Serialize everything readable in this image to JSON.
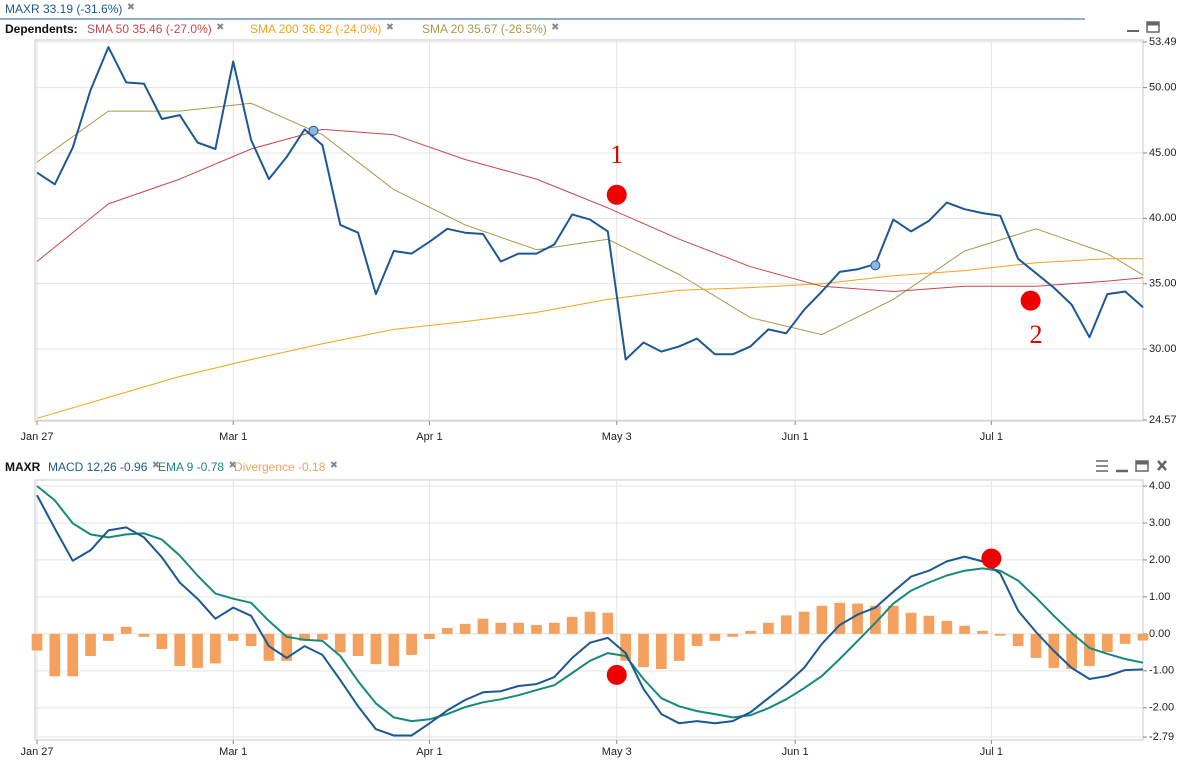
{
  "chart_data": [
    {
      "type": "line",
      "dependents_label": "Dependents:",
      "x": [
        0,
        2,
        4,
        6,
        8,
        10,
        12,
        14,
        16,
        18,
        20,
        22,
        24,
        26,
        28,
        30,
        32,
        34,
        36,
        38,
        40,
        42,
        44,
        46,
        48,
        50,
        52,
        54,
        56,
        58,
        60,
        62,
        64,
        66,
        68,
        70,
        72,
        74,
        76,
        78,
        80,
        82,
        84,
        86,
        88,
        90,
        92,
        94,
        96,
        98,
        100,
        102,
        104,
        106,
        108,
        110,
        112,
        114,
        116,
        118,
        120,
        122,
        124
      ],
      "xlim": [
        0,
        124
      ],
      "xticks": [
        {
          "value": 0,
          "label": "Jan 27"
        },
        {
          "value": 22,
          "label": "Mar 1"
        },
        {
          "value": 44,
          "label": "Apr 1"
        },
        {
          "value": 65,
          "label": "May 3"
        },
        {
          "value": 85,
          "label": "Jun 1"
        },
        {
          "value": 107,
          "label": "Jul 1"
        }
      ],
      "ylim": [
        24.57,
        53.49
      ],
      "yticks": [
        24.57,
        {
          "value": 30,
          "label": "30.00"
        },
        {
          "value": 35,
          "label": "35.00"
        },
        {
          "value": 40,
          "label": "40.00"
        },
        {
          "value": 45,
          "label": "45.00"
        },
        {
          "value": 50,
          "label": "50.00"
        },
        53.49
      ],
      "grid": true,
      "series": [
        {
          "name": "MAXR 33.19 (-31.6%)",
          "type": "line",
          "color": "#1b5894",
          "width": 2,
          "values": [
            43.5,
            42.6,
            45.4,
            49.8,
            53.1,
            50.4,
            50.3,
            47.6,
            47.9,
            45.8,
            45.3,
            52,
            46,
            43,
            44.7,
            46.8,
            45.6,
            39.5,
            38.9,
            34.2,
            37.5,
            37.3,
            38.2,
            39.2,
            38.9,
            38.8,
            36.7,
            37.3,
            37.3,
            38,
            40.3,
            39.9,
            39,
            29.2,
            30.5,
            29.8,
            30.2,
            30.8,
            29.6,
            29.6,
            30.2,
            31.5,
            31.2,
            33,
            34.4,
            35.9,
            36.1,
            36.5,
            39.9,
            39,
            39.8,
            41.2,
            40.7,
            40.4,
            40.2,
            36.9,
            35.8,
            34.7,
            33.4,
            30.9,
            34.2,
            34.4,
            33.19
          ]
        },
        {
          "name": "SMA 50 35.46 (-27.0%)",
          "type": "line",
          "color": "#c8474a",
          "width": 1,
          "x": [
            0,
            8,
            16,
            24,
            32,
            40,
            48,
            56,
            64,
            72,
            80,
            88,
            96,
            104,
            112,
            120,
            124
          ],
          "values": [
            36.7,
            41.1,
            43,
            45.3,
            46.8,
            46.4,
            44.5,
            43,
            40.8,
            38.4,
            36.3,
            34.8,
            34.4,
            34.8,
            34.8,
            35.2,
            35.46
          ]
        },
        {
          "name": "SMA 200 36.92 (-24.0%)",
          "type": "line",
          "color": "#f2a31b",
          "width": 1,
          "x": [
            0,
            8,
            16,
            24,
            32,
            40,
            48,
            56,
            64,
            72,
            80,
            88,
            96,
            104,
            112,
            120,
            124
          ],
          "values": [
            24.7,
            26.3,
            27.9,
            29.2,
            30.4,
            31.5,
            32.1,
            32.8,
            33.8,
            34.5,
            34.7,
            35,
            35.6,
            36,
            36.6,
            36.9,
            36.92
          ]
        },
        {
          "name": "SMA 20 35.67 (-26.5%)",
          "type": "line",
          "color": "#a8994a",
          "width": 1,
          "x": [
            0,
            8,
            16,
            24,
            32,
            40,
            48,
            56,
            64,
            72,
            80,
            88,
            96,
            104,
            112,
            120,
            124
          ],
          "values": [
            44.3,
            48.2,
            48.2,
            48.8,
            46.4,
            42.2,
            39.5,
            37.6,
            38.4,
            35.7,
            32.4,
            31.1,
            33.8,
            37.5,
            39.2,
            37.3,
            35.67
          ]
        }
      ],
      "events": [
        {
          "x": 31,
          "y": 46.7
        },
        {
          "x": 94,
          "y": 36.4
        }
      ],
      "markers": [
        {
          "x": 65,
          "y": 41.8,
          "color": "#ee0000"
        },
        {
          "x": 111.4,
          "y": 33.7,
          "color": "#ee0000"
        }
      ],
      "annotations": [
        {
          "text": "1",
          "x": 65,
          "y": 44.7
        },
        {
          "text": "2",
          "x": 112,
          "y": 30.9
        }
      ]
    },
    {
      "type": "line",
      "symbol": "MAXR",
      "x": [
        0,
        2,
        4,
        6,
        8,
        10,
        12,
        14,
        16,
        18,
        20,
        22,
        24,
        26,
        28,
        30,
        32,
        34,
        36,
        38,
        40,
        42,
        44,
        46,
        48,
        50,
        52,
        54,
        56,
        58,
        60,
        62,
        64,
        66,
        68,
        70,
        72,
        74,
        76,
        78,
        80,
        82,
        84,
        86,
        88,
        90,
        92,
        94,
        96,
        98,
        100,
        102,
        104,
        106,
        108,
        110,
        112,
        114,
        116,
        118,
        120,
        122,
        124
      ],
      "xlim": [
        0,
        124
      ],
      "xticks": [
        {
          "value": 0,
          "label": "Jan 27"
        },
        {
          "value": 22,
          "label": "Mar 1"
        },
        {
          "value": 44,
          "label": "Apr 1"
        },
        {
          "value": 65,
          "label": "May 3"
        },
        {
          "value": 85,
          "label": "Jun 1"
        },
        {
          "value": 107,
          "label": "Jul 1"
        }
      ],
      "ylim": [
        -2.79,
        4
      ],
      "yticks": [
        -2.79,
        {
          "value": -2,
          "label": "-2.00"
        },
        {
          "value": -1,
          "label": "-1.00"
        },
        {
          "value": 0,
          "label": "0.00"
        },
        {
          "value": 1,
          "label": "1.00"
        },
        {
          "value": 2,
          "label": "2.00"
        },
        {
          "value": 3,
          "label": "3.00"
        },
        {
          "value": 4,
          "label": "4.00"
        }
      ],
      "grid": true,
      "series": [
        {
          "name": "MACD 12,26 -0.96",
          "type": "line",
          "color": "#1b5894",
          "width": 2,
          "values": [
            3.75,
            2.85,
            1.98,
            2.26,
            2.8,
            2.88,
            2.61,
            2.07,
            1.39,
            0.95,
            0.41,
            0.71,
            0.49,
            -0.33,
            -0.65,
            -0.33,
            -0.57,
            -1.25,
            -1.96,
            -2.58,
            -2.75,
            -2.75,
            -2.42,
            -2.07,
            -1.79,
            -1.58,
            -1.55,
            -1.41,
            -1.36,
            -1.17,
            -0.65,
            -0.24,
            -0.11,
            -0.52,
            -1.49,
            -2.17,
            -2.42,
            -2.36,
            -2.42,
            -2.36,
            -2.12,
            -1.74,
            -1.36,
            -0.92,
            -0.27,
            0.24,
            0.52,
            0.71,
            1.14,
            1.55,
            1.71,
            1.96,
            2.09,
            1.96,
            1.63,
            0.63,
            0.05,
            -0.46,
            -0.92,
            -1.22,
            -1.14,
            -0.98,
            -0.96
          ]
        },
        {
          "name": "EMA 9 -0.78",
          "type": "line",
          "color": "#168a78",
          "width": 2,
          "values": [
            4,
            3.61,
            2.99,
            2.69,
            2.61,
            2.69,
            2.72,
            2.55,
            2.12,
            1.58,
            1.09,
            0.95,
            0.84,
            0.35,
            -0.08,
            -0.16,
            -0.19,
            -0.6,
            -1.28,
            -1.88,
            -2.26,
            -2.36,
            -2.31,
            -2.17,
            -1.98,
            -1.85,
            -1.77,
            -1.66,
            -1.52,
            -1.39,
            -1.06,
            -0.73,
            -0.52,
            -0.6,
            -1.22,
            -1.74,
            -1.96,
            -2.09,
            -2.17,
            -2.26,
            -2.2,
            -2.01,
            -1.77,
            -1.47,
            -1.14,
            -0.68,
            -0.19,
            0.3,
            0.82,
            1.17,
            1.39,
            1.58,
            1.71,
            1.77,
            1.71,
            1.44,
            0.98,
            0.49,
            0.03,
            -0.38,
            -0.54,
            -0.68,
            -0.78
          ]
        },
        {
          "name": "Divergence -0.18",
          "type": "bar",
          "color": "#f4a160",
          "values": [
            -0.45,
            -1.15,
            -1.15,
            -0.6,
            -0.19,
            0.19,
            -0.08,
            -0.41,
            -0.87,
            -0.92,
            -0.8,
            -0.19,
            -0.33,
            -0.73,
            -0.73,
            -0.19,
            -0.16,
            -0.5,
            -0.6,
            -0.82,
            -0.87,
            -0.57,
            -0.14,
            0.16,
            0.27,
            0.41,
            0.3,
            0.3,
            0.24,
            0.3,
            0.46,
            0.6,
            0.57,
            -0.73,
            -0.9,
            -0.95,
            -0.73,
            -0.33,
            -0.19,
            -0.08,
            0.08,
            0.3,
            0.5,
            0.6,
            0.76,
            0.84,
            0.82,
            0.76,
            0.76,
            0.57,
            0.49,
            0.35,
            0.22,
            0.08,
            -0.05,
            -0.33,
            -0.65,
            -0.92,
            -0.95,
            -0.87,
            -0.49,
            -0.27,
            -0.18
          ]
        }
      ],
      "markers": [
        {
          "x": 65,
          "y": -1.11,
          "color": "#ee0000"
        },
        {
          "x": 107,
          "y": 2.04,
          "color": "#ee0000"
        }
      ]
    }
  ]
}
